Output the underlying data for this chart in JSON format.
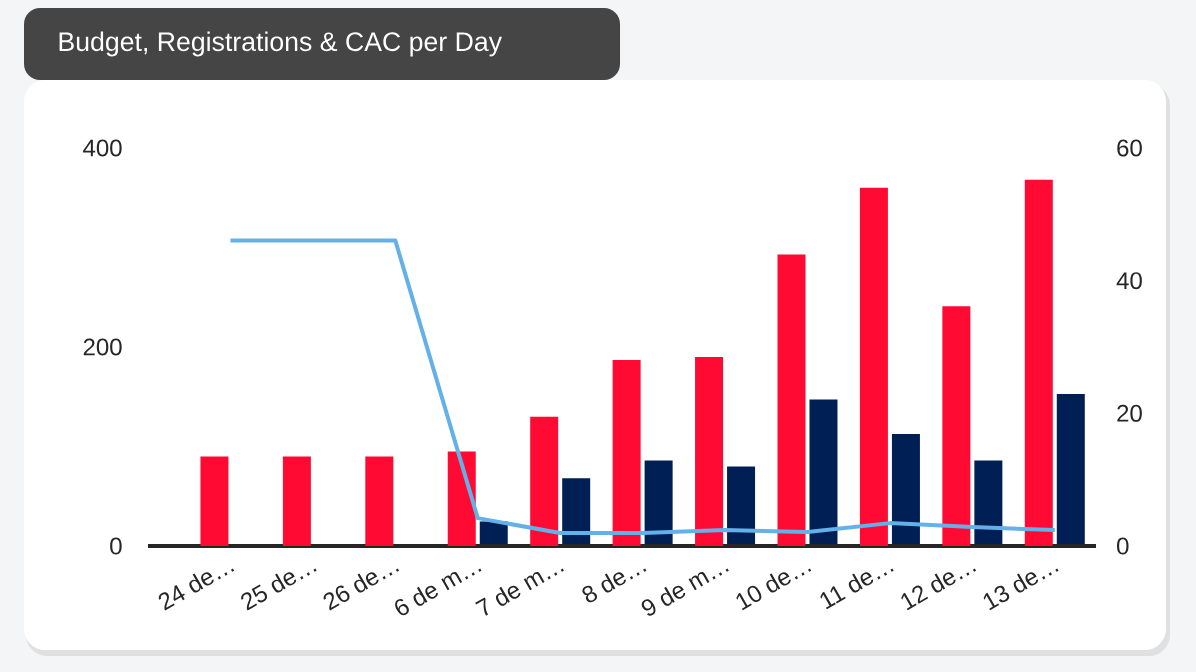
{
  "chart_data": {
    "type": "bar",
    "title": "Budget, Registrations & CAC per Day",
    "categories": [
      "24 de…",
      "25 de…",
      "26 de…",
      "6 de m…",
      "7 de m…",
      "8 de…",
      "9 de m…",
      "10 de…",
      "11 de…",
      "12 de…",
      "13 de…"
    ],
    "series": [
      {
        "color": "#ff0a33",
        "values": [
          90,
          90,
          90,
          95,
          130,
          187,
          190,
          293,
          360,
          241,
          368
        ]
      },
      {
        "color": "#001f54",
        "axis": "y2",
        "values": [
          0,
          0,
          0,
          3.7,
          10.2,
          12.9,
          12,
          22.1,
          16.9,
          12.9,
          22.9
        ]
      },
      {
        "type": "line",
        "color": "#64b0e8",
        "values": [
          307,
          307,
          307,
          28,
          13,
          13,
          16,
          14,
          23,
          19,
          16
        ]
      }
    ],
    "ylim": [
      0,
      400
    ],
    "yticks": [
      0,
      200,
      400
    ],
    "y2lim": [
      0,
      60
    ],
    "y2ticks": [
      0,
      20,
      40,
      60
    ]
  }
}
